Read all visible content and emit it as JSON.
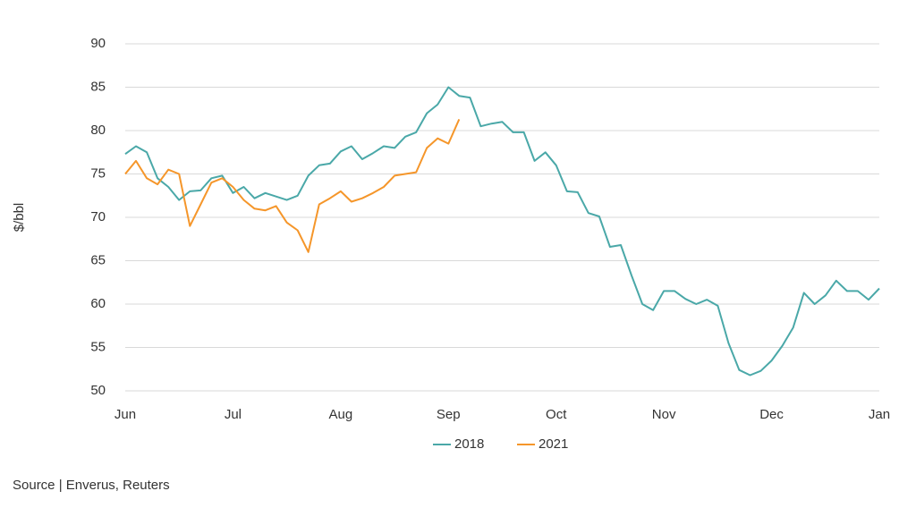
{
  "chart_data": {
    "type": "line",
    "y_label": "$/bbl",
    "source": "Source | Enverus, Reuters",
    "categories": [
      "Jun",
      null,
      null,
      null,
      null,
      null,
      null,
      null,
      null,
      null,
      "Jul",
      null,
      null,
      null,
      null,
      null,
      null,
      null,
      null,
      null,
      "Aug",
      null,
      null,
      null,
      null,
      null,
      null,
      null,
      null,
      null,
      "Sep",
      null,
      null,
      null,
      null,
      null,
      null,
      null,
      null,
      null,
      "Oct",
      null,
      null,
      null,
      null,
      null,
      null,
      null,
      null,
      null,
      "Nov",
      null,
      null,
      null,
      null,
      null,
      null,
      null,
      null,
      null,
      "Dec",
      null,
      null,
      null,
      null,
      null,
      null,
      null,
      null,
      null,
      "Jan"
    ],
    "series": [
      {
        "name": "2018",
        "color": "#4aa8a8",
        "values": [
          77.3,
          78.2,
          77.5,
          74.5,
          73.5,
          72,
          73,
          73.1,
          74.5,
          74.8,
          72.8,
          73.5,
          72.2,
          72.8,
          72.4,
          72,
          72.5,
          74.8,
          76,
          76.2,
          77.6,
          78.2,
          76.7,
          77.4,
          78.2,
          78,
          79.3,
          79.8,
          82,
          83,
          85,
          84,
          83.8,
          80.5,
          80.8,
          81,
          79.8,
          79.8,
          76.5,
          77.5,
          76,
          73,
          72.9,
          70.5,
          70.1,
          66.6,
          66.8,
          63.3,
          60,
          59.3,
          61.5,
          61.5,
          60.6,
          60,
          60.5,
          59.8,
          55.5,
          52.4,
          51.8,
          52.3,
          53.5,
          55.2,
          57.3,
          61.3,
          60,
          61,
          62.7,
          61.5,
          61.5,
          60.5,
          61.8
        ]
      },
      {
        "name": "2021",
        "color": "#f5962a",
        "values": [
          75,
          76.5,
          74.5,
          73.8,
          75.5,
          75,
          69,
          71.5,
          74,
          74.5,
          73.5,
          72,
          71,
          70.8,
          71.3,
          69.4,
          68.5,
          66,
          71.5,
          72.2,
          73,
          71.8,
          72.2,
          72.8,
          73.5,
          74.8,
          75,
          75.2,
          78,
          79.1,
          78.5,
          81.3,
          null,
          null,
          null,
          null,
          null,
          null,
          null,
          null,
          null,
          null,
          null,
          null,
          null,
          null,
          null,
          null,
          null,
          null,
          null,
          null,
          null,
          null,
          null,
          null,
          null,
          null,
          null,
          null,
          null,
          null,
          null,
          null,
          null,
          null,
          null,
          null,
          null,
          null,
          null
        ]
      }
    ],
    "ylim": [
      50,
      90
    ],
    "yticks": [
      50,
      55,
      60,
      65,
      70,
      75,
      80,
      85,
      90
    ],
    "grid": true
  }
}
